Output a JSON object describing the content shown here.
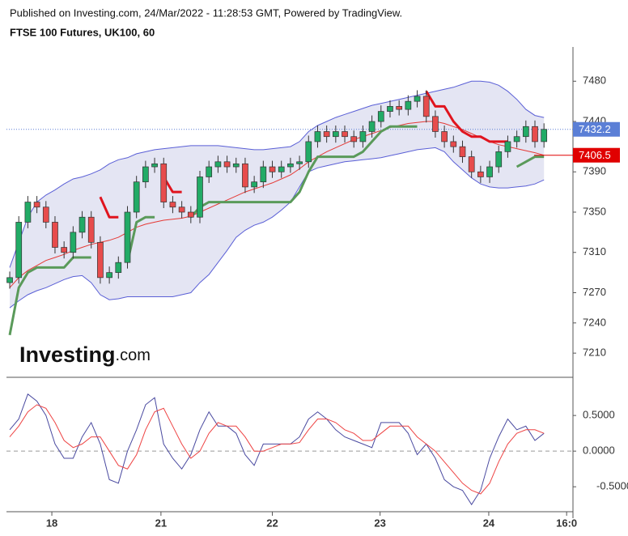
{
  "header": {
    "source": "Published on Investing.com, 24/Mar/2022 - 11:28:53 GMT, Powered by TradingView.",
    "logo": "Investing",
    "logo_suffix": ".com"
  },
  "chart_data": [
    {
      "type": "candlestick",
      "title": "FTSE 100 Futures, UK100, 60",
      "x": [
        0,
        1,
        2,
        3,
        4,
        5,
        6,
        7,
        8,
        9,
        10,
        11,
        12,
        13,
        14,
        15,
        16,
        17,
        18,
        19,
        20,
        21,
        22,
        23,
        24,
        25,
        26,
        27,
        28,
        29,
        30,
        31,
        32,
        33,
        34,
        35,
        36,
        37,
        38,
        39,
        40,
        41,
        42,
        43,
        44,
        45,
        46,
        47,
        48,
        49,
        50,
        51,
        52,
        53,
        54,
        55,
        56,
        57,
        58,
        59
      ],
      "open": [
        7280,
        7285,
        7340,
        7360,
        7355,
        7340,
        7315,
        7310,
        7330,
        7345,
        7320,
        7285,
        7290,
        7300,
        7350,
        7380,
        7395,
        7398,
        7360,
        7355,
        7350,
        7345,
        7385,
        7395,
        7400,
        7395,
        7398,
        7375,
        7380,
        7395,
        7390,
        7395,
        7398,
        7400,
        7420,
        7430,
        7425,
        7430,
        7425,
        7420,
        7430,
        7440,
        7450,
        7455,
        7452,
        7460,
        7465,
        7445,
        7430,
        7420,
        7415,
        7405,
        7390,
        7385,
        7395,
        7410,
        7420,
        7425,
        7435,
        7420
      ],
      "high": [
        7291,
        7346,
        7366,
        7366,
        7361,
        7346,
        7321,
        7336,
        7351,
        7351,
        7326,
        7296,
        7306,
        7356,
        7386,
        7401,
        7404,
        7404,
        7366,
        7361,
        7356,
        7391,
        7401,
        7406,
        7406,
        7404,
        7404,
        7386,
        7401,
        7401,
        7401,
        7404,
        7406,
        7426,
        7436,
        7436,
        7436,
        7436,
        7431,
        7436,
        7446,
        7456,
        7461,
        7461,
        7466,
        7471,
        7471,
        7451,
        7436,
        7426,
        7421,
        7411,
        7396,
        7401,
        7416,
        7426,
        7431,
        7441,
        7441,
        7438.2
      ],
      "low": [
        7274,
        7279,
        7334,
        7349,
        7334,
        7309,
        7304,
        7304,
        7324,
        7314,
        7279,
        7279,
        7284,
        7294,
        7344,
        7374,
        7389,
        7354,
        7349,
        7344,
        7339,
        7339,
        7379,
        7389,
        7389,
        7389,
        7369,
        7369,
        7374,
        7384,
        7384,
        7389,
        7392,
        7394,
        7414,
        7419,
        7419,
        7419,
        7414,
        7414,
        7424,
        7434,
        7444,
        7446,
        7446,
        7454,
        7439,
        7424,
        7414,
        7409,
        7399,
        7384,
        7379,
        7379,
        7389,
        7404,
        7414,
        7419,
        7414,
        7414
      ],
      "close": [
        7285,
        7340,
        7360,
        7355,
        7340,
        7315,
        7310,
        7330,
        7345,
        7320,
        7285,
        7290,
        7300,
        7350,
        7380,
        7395,
        7398,
        7360,
        7355,
        7350,
        7345,
        7385,
        7395,
        7400,
        7395,
        7398,
        7375,
        7380,
        7395,
        7390,
        7395,
        7398,
        7400,
        7420,
        7430,
        7425,
        7430,
        7425,
        7420,
        7430,
        7440,
        7450,
        7455,
        7452,
        7460,
        7465,
        7445,
        7430,
        7420,
        7415,
        7405,
        7390,
        7385,
        7395,
        7410,
        7420,
        7425,
        7435,
        7420,
        7432.2
      ],
      "up_color": "#22ab66",
      "down_color": "#e74c4c",
      "bands": {
        "color": "#5a5fd6",
        "fill": "#e4e5f3",
        "basis_color": "#e53935",
        "upper": [
          7295,
          7320,
          7345,
          7360,
          7367,
          7372,
          7378,
          7383,
          7385,
          7388,
          7392,
          7398,
          7402,
          7404,
          7408,
          7410,
          7412,
          7413,
          7414,
          7415,
          7416,
          7416,
          7416,
          7416,
          7415,
          7414,
          7413,
          7412,
          7412,
          7413,
          7414,
          7415,
          7420,
          7430,
          7436,
          7440,
          7444,
          7447,
          7450,
          7453,
          7456,
          7458,
          7460,
          7462,
          7464,
          7466,
          7468,
          7470,
          7472,
          7474,
          7477,
          7480,
          7480,
          7479,
          7476,
          7470,
          7462,
          7452,
          7446,
          7444
        ],
        "lower": [
          7255,
          7262,
          7268,
          7272,
          7275,
          7279,
          7283,
          7286,
          7287,
          7280,
          7268,
          7263,
          7264,
          7266,
          7266,
          7266,
          7266,
          7266,
          7266,
          7268,
          7270,
          7280,
          7288,
          7300,
          7312,
          7325,
          7332,
          7337,
          7340,
          7345,
          7352,
          7360,
          7375,
          7390,
          7394,
          7396,
          7398,
          7400,
          7401,
          7402,
          7403,
          7404,
          7406,
          7408,
          7410,
          7412,
          7413,
          7414,
          7410,
          7400,
          7392,
          7384,
          7378,
          7375,
          7374,
          7374,
          7375,
          7376,
          7378,
          7382
        ],
        "basis": [
          7275,
          7285,
          7292,
          7297,
          7302,
          7305,
          7308,
          7312,
          7315,
          7318,
          7320,
          7322,
          7325,
          7330,
          7335,
          7338,
          7340,
          7342,
          7343,
          7344,
          7346,
          7350,
          7354,
          7358,
          7362,
          7366,
          7370,
          7373,
          7376,
          7379,
          7383,
          7387,
          7393,
          7400,
          7405,
          7410,
          7414,
          7418,
          7422,
          7425,
          7428,
          7431,
          7434,
          7436,
          7438,
          7439,
          7440,
          7440,
          7438,
          7435,
          7432,
          7428,
          7424,
          7420,
          7417,
          7415,
          7413,
          7411,
          7409,
          7406.5
        ]
      },
      "supertrend": {
        "up_color": "#5a9a5a",
        "down_color": "#e0141e",
        "up": [
          7228,
          7275,
          7290,
          7295,
          7295,
          7295,
          7295,
          7305,
          7305,
          7305,
          null,
          null,
          null,
          7300,
          7340,
          7345,
          7345,
          null,
          null,
          null,
          7345,
          7355,
          7360,
          7360,
          7360,
          7360,
          7360,
          7360,
          7360,
          7360,
          7360,
          7360,
          7370,
          7390,
          7405,
          7405,
          7405,
          7405,
          7405,
          7410,
          7420,
          7430,
          7435,
          7435,
          7435,
          7435,
          null,
          null,
          null,
          null,
          null,
          null,
          null,
          null,
          null,
          null,
          7395,
          7400,
          7405,
          7405
        ],
        "down": [
          null,
          null,
          null,
          null,
          null,
          null,
          null,
          null,
          null,
          null,
          7365,
          7345,
          7345,
          null,
          null,
          null,
          null,
          7385,
          7370,
          7370,
          null,
          null,
          null,
          null,
          null,
          null,
          null,
          null,
          null,
          null,
          null,
          null,
          null,
          null,
          null,
          null,
          null,
          null,
          null,
          null,
          null,
          null,
          null,
          null,
          null,
          null,
          7470,
          7455,
          7455,
          7440,
          7430,
          7425,
          7425,
          7420,
          7420,
          7420,
          null,
          null,
          null,
          null
        ]
      },
      "last_price_color": "#5b7fd6",
      "xlim": [
        -0.36,
        62.2
      ],
      "ylim": [
        7186,
        7514
      ],
      "yticks": [
        7210,
        7240,
        7270,
        7310,
        7350,
        7390,
        7440,
        7480
      ]
    },
    {
      "type": "line",
      "x": [
        0,
        1,
        2,
        3,
        4,
        5,
        6,
        7,
        8,
        9,
        10,
        11,
        12,
        13,
        14,
        15,
        16,
        17,
        18,
        19,
        20,
        21,
        22,
        23,
        24,
        25,
        26,
        27,
        28,
        29,
        30,
        31,
        32,
        33,
        34,
        35,
        36,
        37,
        38,
        39,
        40,
        41,
        42,
        43,
        44,
        45,
        46,
        47,
        48,
        49,
        50,
        51,
        52,
        53,
        54,
        55,
        56,
        57,
        58,
        59
      ],
      "series": [
        {
          "color": "#4a4aa0",
          "values": [
            0.3,
            0.45,
            0.8,
            0.7,
            0.5,
            0.1,
            -0.1,
            -0.1,
            0.2,
            0.4,
            0.1,
            -0.4,
            -0.45,
            0.0,
            0.3,
            0.65,
            0.75,
            0.1,
            -0.1,
            -0.25,
            -0.05,
            0.3,
            0.55,
            0.35,
            0.35,
            0.25,
            -0.05,
            -0.2,
            0.1,
            0.1,
            0.1,
            0.1,
            0.2,
            0.45,
            0.55,
            0.45,
            0.3,
            0.2,
            0.15,
            0.1,
            0.05,
            0.4,
            0.4,
            0.4,
            0.25,
            -0.05,
            0.1,
            -0.1,
            -0.4,
            -0.5,
            -0.55,
            -0.75,
            -0.55,
            -0.1,
            0.2,
            0.45,
            0.3,
            0.35,
            0.15,
            0.25
          ]
        },
        {
          "color": "#ee4444",
          "values": [
            0.2,
            0.35,
            0.55,
            0.65,
            0.6,
            0.4,
            0.15,
            0.05,
            0.1,
            0.2,
            0.2,
            0.0,
            -0.2,
            -0.25,
            -0.05,
            0.3,
            0.55,
            0.6,
            0.35,
            0.1,
            -0.1,
            0.0,
            0.25,
            0.4,
            0.35,
            0.35,
            0.2,
            0.0,
            0.0,
            0.05,
            0.1,
            0.1,
            0.12,
            0.3,
            0.45,
            0.45,
            0.4,
            0.3,
            0.25,
            0.15,
            0.15,
            0.25,
            0.35,
            0.35,
            0.35,
            0.2,
            0.1,
            0.0,
            -0.15,
            -0.3,
            -0.45,
            -0.55,
            -0.6,
            -0.45,
            -0.15,
            0.1,
            0.25,
            0.3,
            0.3,
            0.25
          ]
        }
      ],
      "xlim": [
        -0.36,
        62.2
      ],
      "ylim": [
        -0.85,
        0.99
      ],
      "yticks": [
        {
          "value": 0.5,
          "label": "0.5000"
        },
        {
          "value": 0,
          "label": "0.0000"
        },
        {
          "value": -0.5,
          "label": "-0.5000"
        }
      ],
      "xticks": [
        {
          "value": 4.65,
          "label": "18"
        },
        {
          "value": 16.7,
          "label": "21"
        },
        {
          "value": 29,
          "label": "22"
        },
        {
          "value": 40.9,
          "label": "23"
        },
        {
          "value": 52.9,
          "label": "24"
        },
        {
          "value": 61.5,
          "label": "16:0"
        }
      ]
    }
  ]
}
